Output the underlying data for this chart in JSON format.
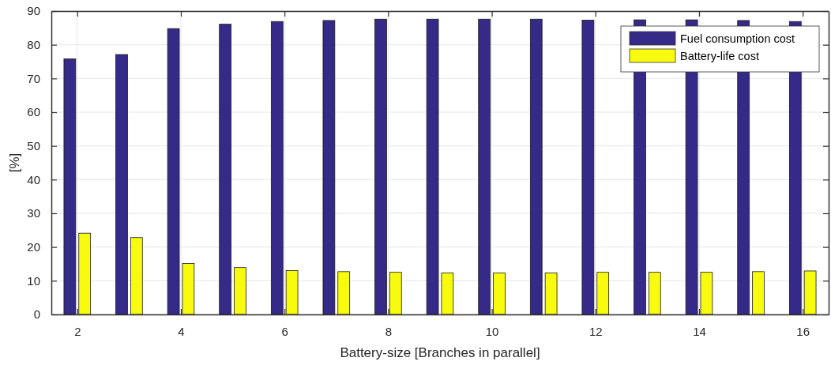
{
  "chart_data": {
    "type": "bar",
    "xlabel": "Battery-size [Branches in parallel]",
    "ylabel": "[%]",
    "x": [
      2,
      3,
      4,
      5,
      6,
      7,
      8,
      9,
      10,
      11,
      12,
      13,
      14,
      15,
      16
    ],
    "series": [
      {
        "name": "Fuel consumption cost",
        "color": "#352a87",
        "values": [
          75.8,
          77.1,
          84.8,
          86.1,
          86.9,
          87.2,
          87.6,
          87.6,
          87.6,
          87.6,
          87.3,
          87.4,
          87.4,
          87.2,
          86.9
        ]
      },
      {
        "name": "Battery-life cost",
        "color": "#f9fb0e",
        "values": [
          24.1,
          22.8,
          15.1,
          13.9,
          13.0,
          12.7,
          12.5,
          12.3,
          12.3,
          12.3,
          12.5,
          12.5,
          12.5,
          12.7,
          12.9
        ]
      }
    ],
    "xlim": [
      1.5,
      16.5
    ],
    "xticks": [
      2,
      4,
      6,
      8,
      10,
      12,
      14,
      16
    ],
    "ylim": [
      0,
      90
    ],
    "yticks": [
      0,
      10,
      20,
      30,
      40,
      50,
      60,
      70,
      80,
      90
    ],
    "grid": true,
    "legend": "top right"
  }
}
